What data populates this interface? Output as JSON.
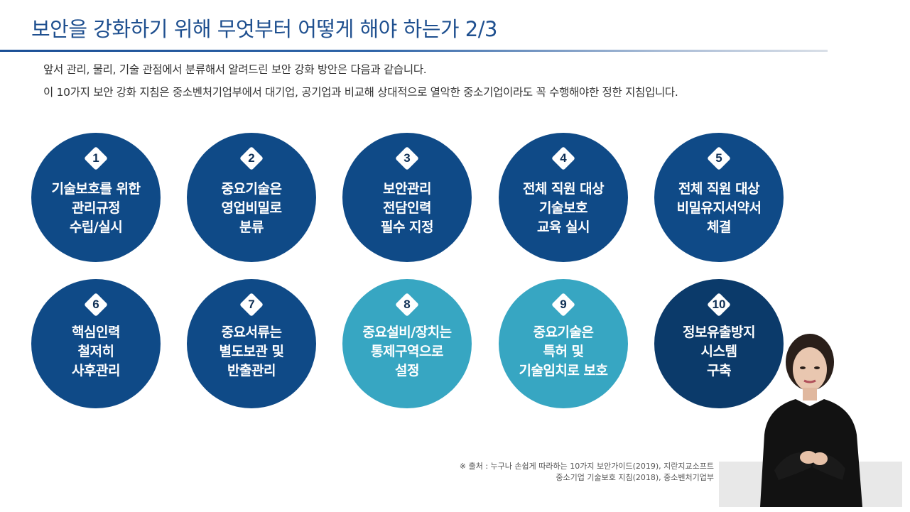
{
  "slide": {
    "title": "보안을 강화하기 위해 무엇부터 어떻게 해야 하는가 2/3",
    "intro_line1": "앞서 관리, 물리, 기술 관점에서 분류해서 알려드린 보안 강화 방안은 다음과 같습니다.",
    "intro_line2": "이 10가지 보안 강화 지침은 중소벤처기업부에서 대기업, 공기업과 비교해 상대적으로 열악한 중소기업이라도 꼭 수행해야한 정한 지침입니다."
  },
  "items": [
    {
      "num": "1",
      "lines": [
        "기술보호를 위한",
        "관리규정",
        "수립/실시"
      ],
      "color": "#0f4a87"
    },
    {
      "num": "2",
      "lines": [
        "중요기술은",
        "영업비밀로",
        "분류"
      ],
      "color": "#0f4a87"
    },
    {
      "num": "3",
      "lines": [
        "보안관리",
        "전담인력",
        "필수 지정"
      ],
      "color": "#0f4a87"
    },
    {
      "num": "4",
      "lines": [
        "전체 직원 대상",
        "기술보호",
        "교육 실시"
      ],
      "color": "#0f4a87"
    },
    {
      "num": "5",
      "lines": [
        "전체 직원 대상",
        "비밀유지서약서",
        "체결"
      ],
      "color": "#0f4a87"
    },
    {
      "num": "6",
      "lines": [
        "핵심인력",
        "철저히",
        "사후관리"
      ],
      "color": "#0f4a87"
    },
    {
      "num": "7",
      "lines": [
        "중요서류는",
        "별도보관 및",
        "반출관리"
      ],
      "color": "#0f4a87"
    },
    {
      "num": "8",
      "lines": [
        "중요설비/장치는",
        "통제구역으로",
        "설정"
      ],
      "color": "#37a6c2"
    },
    {
      "num": "9",
      "lines": [
        "중요기술은",
        "특허 및",
        "기술임치로 보호"
      ],
      "color": "#37a6c2"
    },
    {
      "num": "10",
      "lines": [
        "정보유출방지",
        "시스템",
        "구축"
      ],
      "color": "#0b3a6a"
    }
  ],
  "source": {
    "line1": "※ 출처 : 누구나 손쉽게 따라하는 10가지 보안가이드(2019), 지란지교소프트",
    "line2": "중소기업 기술보호 지침(2018), 중소벤처기업부"
  }
}
